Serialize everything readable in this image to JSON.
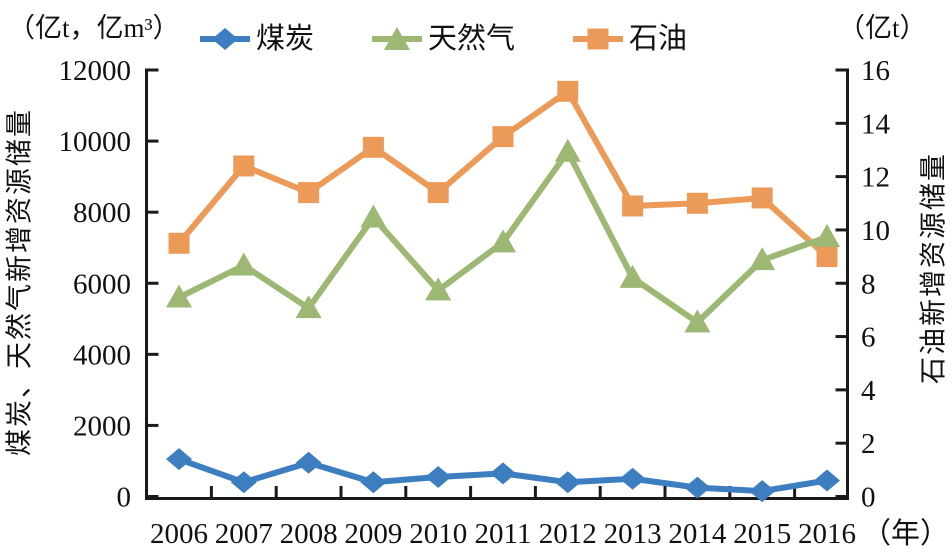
{
  "chart_data": {
    "type": "line",
    "categories": [
      "2006",
      "2007",
      "2008",
      "2009",
      "2010",
      "2011",
      "2012",
      "2013",
      "2014",
      "2015",
      "2016"
    ],
    "x_suffix_label": "（年）",
    "left_axis": {
      "unit": "（亿t，亿m³）",
      "title": "煤炭、天然气新增资源储量",
      "min": 0,
      "max": 12000,
      "step": 2000,
      "ticks": [
        0,
        2000,
        4000,
        6000,
        8000,
        10000,
        12000
      ]
    },
    "right_axis": {
      "unit": "（亿t）",
      "title": "石油新增资源储量",
      "min": 0,
      "max": 16,
      "step": 2,
      "ticks": [
        0,
        2,
        4,
        6,
        8,
        10,
        12,
        14,
        16
      ]
    },
    "series": [
      {
        "name": "煤炭",
        "marker": "diamond",
        "color": "#3C7EBF",
        "axis": "left",
        "values": [
          1050,
          400,
          950,
          400,
          550,
          650,
          400,
          500,
          250,
          150,
          450
        ]
      },
      {
        "name": "天然气",
        "marker": "triangle",
        "color": "#9CB873",
        "axis": "left",
        "values": [
          5600,
          6500,
          5300,
          7850,
          5800,
          7150,
          9700,
          6150,
          4900,
          6650,
          7300
        ]
      },
      {
        "name": "石油",
        "marker": "square",
        "color": "#EC9A57",
        "axis": "right",
        "values": [
          9.5,
          12.4,
          11.4,
          13.1,
          11.4,
          13.5,
          15.2,
          10.9,
          11.0,
          11.2,
          9.0
        ]
      }
    ],
    "legend": {
      "position": "top",
      "entries": [
        "煤炭",
        "天然气",
        "石油"
      ]
    },
    "grid": false,
    "axis_color": "#1a1a1a"
  }
}
